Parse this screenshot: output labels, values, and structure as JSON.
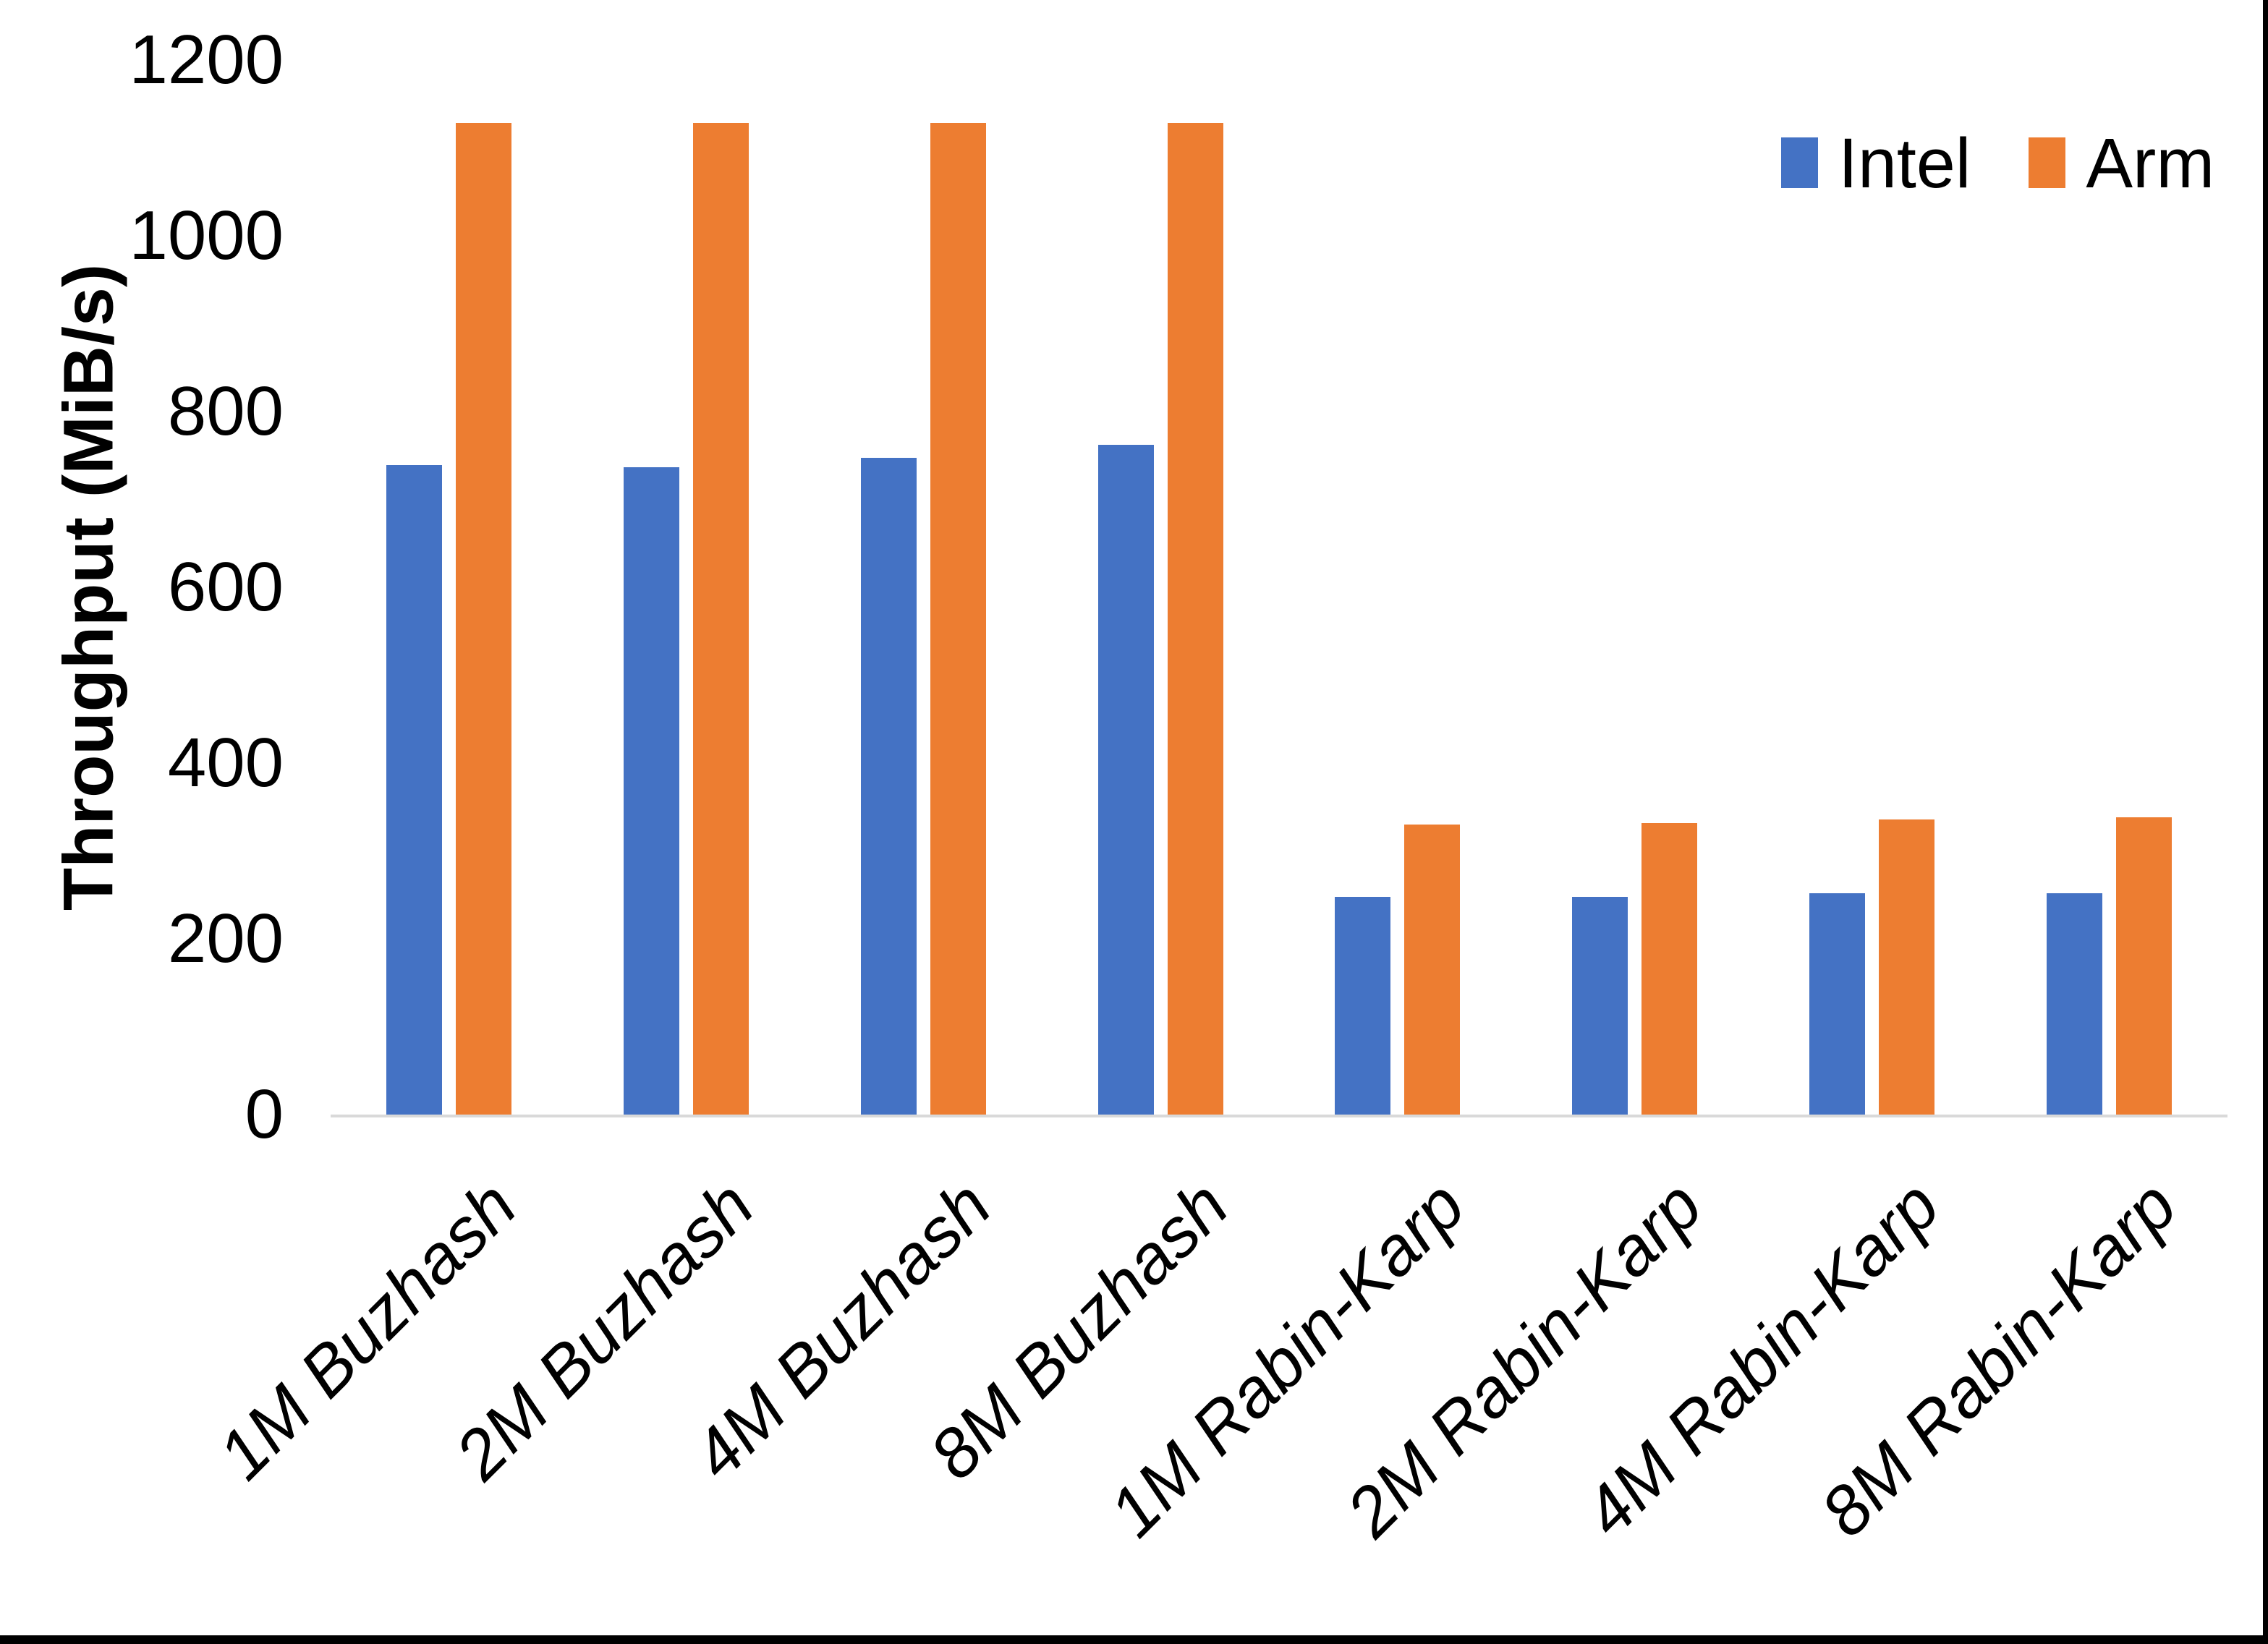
{
  "chart_data": {
    "type": "bar",
    "title": "",
    "ylabel": "Throughput (MiB/s)",
    "xlabel": "",
    "ylim": [
      0,
      1200
    ],
    "yticks": [
      0,
      200,
      400,
      600,
      800,
      1000,
      1200
    ],
    "grid": false,
    "legend_position": "top-right",
    "categories": [
      "1M Buzhash",
      "2M Buzhash",
      "4M Buzhash",
      "8M Buzhash",
      "1M Rabin-Karp",
      "2M Rabin-Karp",
      "4M Rabin-Karp",
      "8M Rabin-Karp"
    ],
    "series": [
      {
        "name": "Intel",
        "color": "#4472C4",
        "values": [
          739,
          737,
          747,
          762,
          248,
          248,
          252,
          252
        ]
      },
      {
        "name": "Arm",
        "color": "#ED7D31",
        "values": [
          1128,
          1128,
          1128,
          1128,
          330,
          332,
          336,
          338
        ]
      }
    ],
    "axis_line_color": "#D9D9D9",
    "text_color": "#000000",
    "background_color": "#FFFFFF",
    "page_border_color": "#000000"
  }
}
